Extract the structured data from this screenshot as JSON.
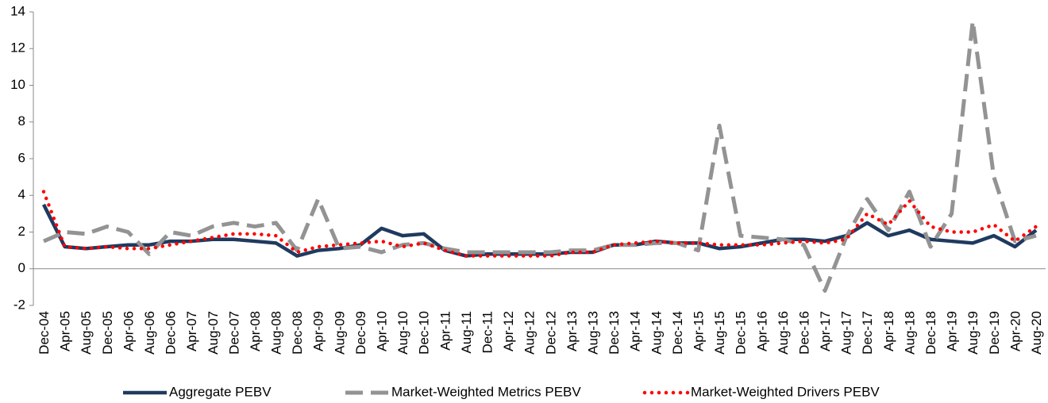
{
  "chart_data": {
    "type": "line",
    "categories": [
      "Dec-04",
      "Apr-05",
      "Aug-05",
      "Dec-05",
      "Apr-06",
      "Aug-06",
      "Dec-06",
      "Apr-07",
      "Aug-07",
      "Dec-07",
      "Apr-08",
      "Aug-08",
      "Dec-08",
      "Apr-09",
      "Aug-09",
      "Dec-09",
      "Apr-10",
      "Aug-10",
      "Dec-10",
      "Apr-11",
      "Aug-11",
      "Dec-11",
      "Apr-12",
      "Aug-12",
      "Dec-12",
      "Apr-13",
      "Aug-13",
      "Dec-13",
      "Apr-14",
      "Aug-14",
      "Dec-14",
      "Apr-15",
      "Aug-15",
      "Dec-15",
      "Apr-16",
      "Aug-16",
      "Dec-16",
      "Apr-17",
      "Aug-17",
      "Dec-17",
      "Apr-18",
      "Aug-18",
      "Dec-18",
      "Apr-19",
      "Aug-19",
      "Dec-19",
      "Apr-20",
      "Aug-20"
    ],
    "series": [
      {
        "name": "Aggregate PEBV",
        "color": "#1f3a5f",
        "style": "solid",
        "values": [
          3.5,
          1.2,
          1.1,
          1.2,
          1.3,
          1.3,
          1.5,
          1.5,
          1.6,
          1.6,
          1.5,
          1.4,
          0.7,
          1.0,
          1.1,
          1.3,
          2.2,
          1.8,
          1.9,
          1.0,
          0.7,
          0.8,
          0.8,
          0.8,
          0.8,
          0.9,
          0.9,
          1.3,
          1.3,
          1.5,
          1.4,
          1.4,
          1.1,
          1.2,
          1.4,
          1.6,
          1.6,
          1.5,
          1.8,
          2.5,
          1.8,
          2.1,
          1.6,
          1.5,
          1.4,
          1.8,
          1.2,
          2.1
        ]
      },
      {
        "name": "Market-Weighted Metrics PEBV",
        "color": "#939393",
        "style": "dashed",
        "values": [
          1.5,
          2.0,
          1.9,
          2.3,
          2.0,
          0.8,
          2.0,
          1.8,
          2.3,
          2.5,
          2.3,
          2.5,
          1.0,
          3.8,
          1.1,
          1.2,
          0.9,
          1.3,
          1.4,
          1.1,
          0.9,
          0.9,
          0.9,
          0.9,
          0.9,
          1.0,
          1.0,
          1.3,
          1.3,
          1.4,
          1.4,
          1.0,
          7.8,
          1.8,
          1.7,
          1.6,
          1.3,
          -1.2,
          1.7,
          3.8,
          2.1,
          4.2,
          1.2,
          3.0,
          13.5,
          5.0,
          1.5,
          1.8
        ]
      },
      {
        "name": "Market-Weighted Drivers PEBV",
        "color": "#ff0000",
        "style": "dotted",
        "values": [
          4.2,
          1.2,
          1.1,
          1.2,
          1.1,
          1.1,
          1.3,
          1.5,
          1.7,
          1.9,
          1.9,
          1.8,
          0.9,
          1.2,
          1.3,
          1.4,
          1.5,
          1.2,
          1.4,
          1.0,
          0.7,
          0.7,
          0.7,
          0.7,
          0.7,
          0.9,
          0.9,
          1.3,
          1.4,
          1.5,
          1.4,
          1.4,
          1.3,
          1.3,
          1.3,
          1.4,
          1.5,
          1.4,
          1.6,
          3.0,
          2.4,
          3.7,
          2.3,
          2.0,
          2.0,
          2.4,
          1.5,
          2.3
        ]
      }
    ],
    "ylim": [
      -2,
      14
    ],
    "yticks": [
      -2,
      0,
      2,
      4,
      6,
      8,
      10,
      12,
      14
    ],
    "grid": false,
    "legend": "bottom"
  }
}
